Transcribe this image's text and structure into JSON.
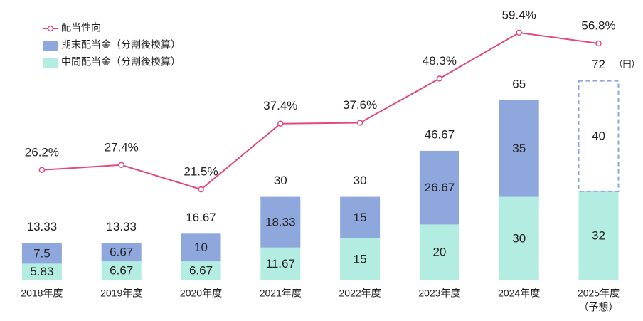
{
  "chart_data": {
    "type": "bar-line",
    "categories": [
      "2018年度",
      "2019年度",
      "2020年度",
      "2021年度",
      "2022年度",
      "2023年度",
      "2024年度",
      "2025年度"
    ],
    "category_note": "（予想）",
    "series": [
      {
        "name": "配当性向",
        "type": "line",
        "color": "#e4497d",
        "values": [
          26.2,
          27.4,
          21.5,
          37.4,
          37.6,
          48.3,
          59.4,
          56.8
        ],
        "value_labels": [
          "26.2%",
          "27.4%",
          "21.5%",
          "37.4%",
          "37.6%",
          "48.3%",
          "59.4%",
          "56.8%"
        ]
      },
      {
        "name": "期末配当金（分割後換算）",
        "type": "bar",
        "color": "#8ea7dc",
        "values": [
          7.5,
          6.67,
          10,
          18.33,
          15,
          26.67,
          35,
          40
        ]
      },
      {
        "name": "中間配当金（分割後換算）",
        "type": "bar",
        "color": "#b3ece1",
        "values": [
          5.83,
          6.67,
          6.67,
          11.67,
          15,
          20,
          30,
          32
        ]
      }
    ],
    "totals": [
      13.33,
      13.33,
      16.67,
      30,
      30,
      46.67,
      65,
      72
    ],
    "unit": "（円）"
  }
}
